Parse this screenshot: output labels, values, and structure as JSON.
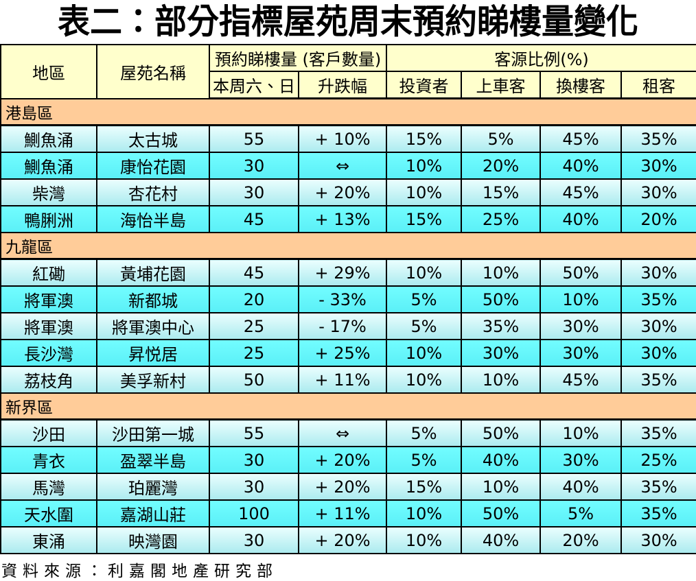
{
  "title": "表二：部分指標屋苑周末預約睇樓量變化",
  "source_note": "資料來源：利嘉閣地產研究部",
  "colors": {
    "header_bg": "#FFFFCC",
    "band_bg": "#FFCC99",
    "row_light_top": "#EAFEFE",
    "row_light_bottom": "#ACEBEF",
    "row_bright_top": "#72FDFF",
    "row_bright_bottom": "#5BF0F7",
    "border": "#000000"
  },
  "table": {
    "header": {
      "district": "地區",
      "estate": "屋苑名稱",
      "bookings_group": "預約睇樓量 (客戶數量)",
      "bookings_sub": [
        "本周六、日",
        "升跌幅"
      ],
      "source_group": "客源比例(%)",
      "source_sub": [
        "投資者",
        "上車客",
        "換樓客",
        "租客"
      ]
    },
    "column_keys": [
      "district",
      "estate-name",
      "bookings-weekend",
      "change-pct",
      "investor-pct",
      "first-time-buyer-pct",
      "upgrader-pct",
      "renter-pct"
    ],
    "sections": [
      {
        "name": "港島區",
        "rows": [
          [
            "鰂魚涌",
            "太古城",
            "55",
            "+ 10%",
            "15%",
            "5%",
            "45%",
            "35%"
          ],
          [
            "鰂魚涌",
            "康怡花園",
            "30",
            "⇔",
            "10%",
            "20%",
            "40%",
            "30%"
          ],
          [
            "柴灣",
            "杏花村",
            "30",
            "+ 20%",
            "10%",
            "15%",
            "45%",
            "30%"
          ],
          [
            "鴨脷洲",
            "海怡半島",
            "45",
            "+ 13%",
            "15%",
            "25%",
            "40%",
            "20%"
          ]
        ]
      },
      {
        "name": "九龍區",
        "rows": [
          [
            "紅磡",
            "黃埔花園",
            "45",
            "+ 29%",
            "10%",
            "10%",
            "50%",
            "30%"
          ],
          [
            "將軍澳",
            "新都城",
            "20",
            "- 33%",
            "5%",
            "50%",
            "10%",
            "35%"
          ],
          [
            "將軍澳",
            "將軍澳中心",
            "25",
            "- 17%",
            "5%",
            "35%",
            "30%",
            "30%"
          ],
          [
            "長沙灣",
            "昇悦居",
            "25",
            "+ 25%",
            "10%",
            "30%",
            "30%",
            "30%"
          ],
          [
            "荔枝角",
            "美孚新村",
            "50",
            "+ 11%",
            "10%",
            "10%",
            "45%",
            "35%"
          ]
        ]
      },
      {
        "name": "新界區",
        "rows": [
          [
            "沙田",
            "沙田第一城",
            "55",
            "⇔",
            "5%",
            "50%",
            "10%",
            "35%"
          ],
          [
            "青衣",
            "盈翠半島",
            "30",
            "+ 20%",
            "5%",
            "40%",
            "30%",
            "25%"
          ],
          [
            "馬灣",
            "珀麗灣",
            "30",
            "+ 20%",
            "15%",
            "10%",
            "40%",
            "35%"
          ],
          [
            "天水圍",
            "嘉湖山莊",
            "100",
            "+ 11%",
            "10%",
            "50%",
            "5%",
            "35%"
          ],
          [
            "東涌",
            "映灣園",
            "30",
            "+ 20%",
            "10%",
            "40%",
            "20%",
            "30%"
          ]
        ]
      }
    ]
  }
}
